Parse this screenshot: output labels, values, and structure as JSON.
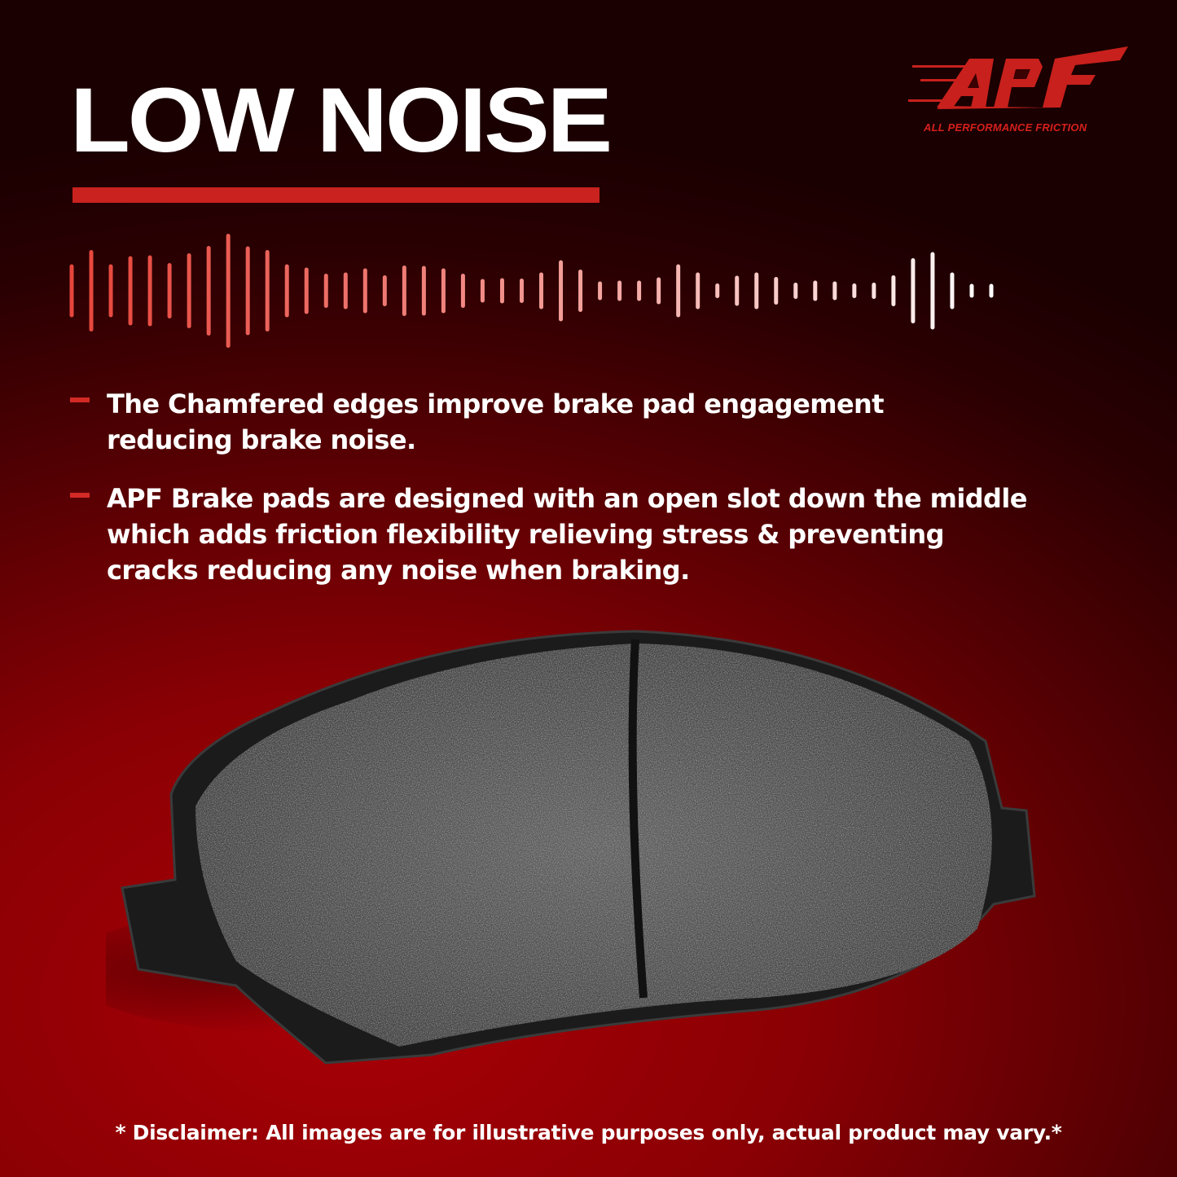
{
  "headline": "LOW NOISE",
  "logo": {
    "mark": "APF",
    "tagline": "ALL PERFORMANCE FRICTION",
    "color": "#d4201c"
  },
  "bullets": [
    "The Chamfered edges improve brake pad engagement\nreducing brake noise.",
    "APF Brake pads are designed with an open slot down the middle\nwhich adds friction flexibility relieving stress & preventing\n cracks reducing any noise when braking."
  ],
  "disclaimer": "* Disclaimer: All images are for illustrative purposes only, actual product may vary.*",
  "colors": {
    "accent": "#c9221f",
    "background": "#8a0004",
    "text": "#ffffff"
  }
}
